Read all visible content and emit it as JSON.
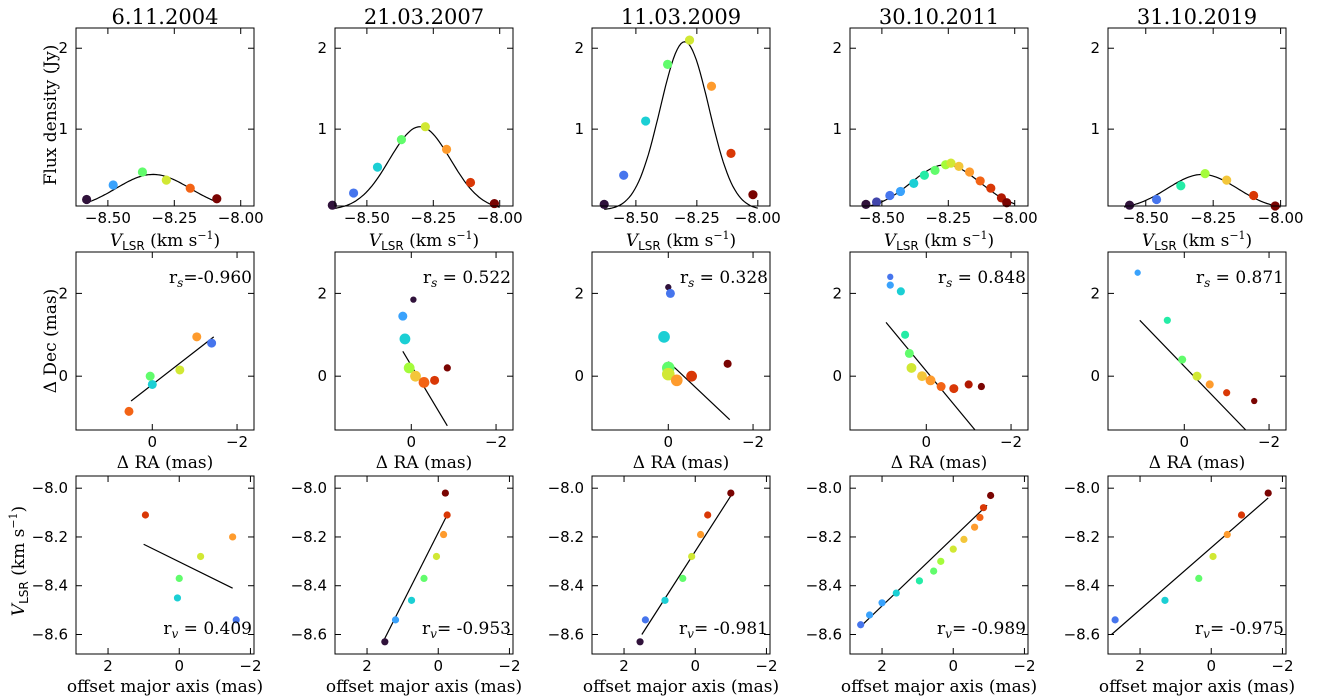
{
  "colors": {
    "colormap": [
      "#30123b",
      "#4145ab",
      "#4675ed",
      "#39a2fc",
      "#1bcfd4",
      "#24eca6",
      "#61fc6c",
      "#a4fc3b",
      "#d1e834",
      "#f3c63a",
      "#fe9b2d",
      "#f36315",
      "#d93806",
      "#b11901",
      "#7a0402"
    ],
    "fit_line": "#000000"
  },
  "labels": {
    "spectrum_ylabel": "Flux density (Jy)",
    "spectrum_xlabel_main": "V",
    "spectrum_xlabel_sub": "LSR",
    "spectrum_xlabel_unit": " (km s",
    "spectrum_xlabel_unit_exp": "−1",
    "spectrum_xlabel_close": ")",
    "map_ylabel": "Δ Dec (mas)",
    "map_xlabel": "Δ RA (mas)",
    "vel_ylabel_main": "V",
    "vel_ylabel_sub": "LSR",
    "vel_ylabel_unit": " (km s",
    "vel_ylabel_unit_exp": "−1",
    "vel_ylabel_close": ")",
    "vel_xlabel": "offset major axis (mas)",
    "rs_prefix": "r",
    "rs_sub": "s",
    "rv_prefix": "r",
    "rv_sub": "v"
  },
  "chart_data": [
    {
      "type": "line",
      "title": "6.11.2004",
      "panel": "spectrum",
      "xlim": [
        -8.62,
        -7.95
      ],
      "ylim": [
        0.05,
        2.25
      ],
      "xticks": [
        "−8.50",
        "−8.25",
        "−8.00"
      ],
      "xtick_values": [
        -8.5,
        -8.25,
        -8.0
      ],
      "yticks": [
        "1",
        "2"
      ],
      "ytick_values": [
        1,
        2
      ],
      "points": [
        {
          "x": -8.58,
          "y": 0.13
        },
        {
          "x": -8.48,
          "y": 0.31
        },
        {
          "x": -8.37,
          "y": 0.47
        },
        {
          "x": -8.28,
          "y": 0.37
        },
        {
          "x": -8.19,
          "y": 0.27
        },
        {
          "x": -8.09,
          "y": 0.14
        }
      ],
      "fit": {
        "amplitude": 0.44,
        "center": -8.33,
        "sigma": 0.14,
        "from": -8.58,
        "to": -8.09
      }
    },
    {
      "type": "line",
      "title": "21.03.2007",
      "panel": "spectrum",
      "xlim": [
        -8.62,
        -7.95
      ],
      "ylim": [
        0.05,
        2.25
      ],
      "xticks": [
        "−8.50",
        "−8.25",
        "−8.00"
      ],
      "xtick_values": [
        -8.5,
        -8.25,
        -8.0
      ],
      "yticks": [
        "1",
        "2"
      ],
      "ytick_values": [
        1,
        2
      ],
      "points": [
        {
          "x": -8.63,
          "y": 0.06
        },
        {
          "x": -8.55,
          "y": 0.21
        },
        {
          "x": -8.46,
          "y": 0.53
        },
        {
          "x": -8.37,
          "y": 0.87
        },
        {
          "x": -8.28,
          "y": 1.03
        },
        {
          "x": -8.2,
          "y": 0.75
        },
        {
          "x": -8.11,
          "y": 0.34
        },
        {
          "x": -8.02,
          "y": 0.08
        }
      ],
      "fit": {
        "amplitude": 1.03,
        "center": -8.3,
        "sigma": 0.115,
        "from": -8.63,
        "to": -8.0
      }
    },
    {
      "type": "line",
      "title": "11.03.2009",
      "panel": "spectrum",
      "xlim": [
        -8.68,
        -7.95
      ],
      "ylim": [
        0.05,
        2.25
      ],
      "xticks": [
        "−8.50",
        "−8.25",
        "−8.00"
      ],
      "xtick_values": [
        -8.5,
        -8.25,
        -8.0
      ],
      "yticks": [
        "1",
        "2"
      ],
      "ytick_values": [
        1,
        2
      ],
      "points": [
        {
          "x": -8.63,
          "y": 0.07
        },
        {
          "x": -8.55,
          "y": 0.43
        },
        {
          "x": -8.46,
          "y": 1.1
        },
        {
          "x": -8.37,
          "y": 1.8
        },
        {
          "x": -8.28,
          "y": 2.1
        },
        {
          "x": -8.19,
          "y": 1.53
        },
        {
          "x": -8.11,
          "y": 0.7
        },
        {
          "x": -8.02,
          "y": 0.19
        }
      ],
      "fit": {
        "amplitude": 2.08,
        "center": -8.3,
        "sigma": 0.1,
        "from": -8.63,
        "to": -8.0
      }
    },
    {
      "type": "line",
      "title": "30.10.2011",
      "panel": "spectrum",
      "xlim": [
        -8.62,
        -7.95
      ],
      "ylim": [
        0.05,
        2.25
      ],
      "xticks": [
        "−8.50",
        "−8.25",
        "−8.00"
      ],
      "xtick_values": [
        -8.5,
        -8.25,
        -8.0
      ],
      "yticks": [
        "1",
        "2"
      ],
      "ytick_values": [
        1,
        2
      ],
      "points": [
        {
          "x": -8.56,
          "y": 0.07
        },
        {
          "x": -8.52,
          "y": 0.1
        },
        {
          "x": -8.47,
          "y": 0.18
        },
        {
          "x": -8.43,
          "y": 0.23
        },
        {
          "x": -8.38,
          "y": 0.33
        },
        {
          "x": -8.34,
          "y": 0.43
        },
        {
          "x": -8.3,
          "y": 0.49
        },
        {
          "x": -8.26,
          "y": 0.56
        },
        {
          "x": -8.24,
          "y": 0.58
        },
        {
          "x": -8.21,
          "y": 0.54
        },
        {
          "x": -8.17,
          "y": 0.47
        },
        {
          "x": -8.13,
          "y": 0.36
        },
        {
          "x": -8.09,
          "y": 0.27
        },
        {
          "x": -8.05,
          "y": 0.15
        },
        {
          "x": -8.03,
          "y": 0.09
        }
      ],
      "fit": {
        "amplitude": 0.56,
        "center": -8.26,
        "sigma": 0.13,
        "from": -8.56,
        "to": -8.0
      }
    },
    {
      "type": "line",
      "title": "31.10.2019",
      "panel": "spectrum",
      "xlim": [
        -8.64,
        -7.98
      ],
      "ylim": [
        0.05,
        2.25
      ],
      "xticks": [
        "−8.50",
        "−8.25",
        "−8.00"
      ],
      "xtick_values": [
        -8.5,
        -8.25,
        -8.0
      ],
      "yticks": [
        "1",
        "2"
      ],
      "ytick_values": [
        1,
        2
      ],
      "points": [
        {
          "x": -8.56,
          "y": 0.06
        },
        {
          "x": -8.46,
          "y": 0.13
        },
        {
          "x": -8.37,
          "y": 0.3
        },
        {
          "x": -8.28,
          "y": 0.45
        },
        {
          "x": -8.2,
          "y": 0.37
        },
        {
          "x": -8.1,
          "y": 0.18
        },
        {
          "x": -8.02,
          "y": 0.05
        }
      ],
      "fit": {
        "amplitude": 0.44,
        "center": -8.29,
        "sigma": 0.13,
        "from": -8.58,
        "to": -8.0
      }
    },
    {
      "type": "scatter",
      "panel": "map",
      "xlim": [
        1.8,
        -2.4
      ],
      "ylim": [
        -1.3,
        3.0
      ],
      "xticks": [
        "0",
        "−2"
      ],
      "xtick_values": [
        0,
        -2
      ],
      "yticks": [
        "0",
        "2"
      ],
      "ytick_values": [
        0,
        2
      ],
      "r_value": "=-0.960",
      "points": [
        {
          "x": 0.55,
          "y": -0.85,
          "s": 1
        },
        {
          "x": 0.0,
          "y": -0.2,
          "s": 1
        },
        {
          "x": 0.05,
          "y": 0.0,
          "s": 1
        },
        {
          "x": -0.65,
          "y": 0.15,
          "s": 1
        },
        {
          "x": -1.05,
          "y": 0.95,
          "s": 1
        },
        {
          "x": -1.4,
          "y": 0.8,
          "s": 1
        }
      ],
      "point_colors": [
        11,
        4,
        6,
        8,
        10,
        2
      ],
      "fit": {
        "x1": 0.5,
        "y1": -0.6,
        "x2": -1.45,
        "y2": 0.95
      }
    },
    {
      "type": "scatter",
      "panel": "map",
      "xlim": [
        1.8,
        -2.4
      ],
      "ylim": [
        -1.3,
        3.0
      ],
      "xticks": [
        "0",
        "−2"
      ],
      "xtick_values": [
        0,
        -2
      ],
      "yticks": [
        "0",
        "2"
      ],
      "ytick_values": [
        0,
        2
      ],
      "r_value": " = 0.522",
      "points": [
        {
          "x": -0.05,
          "y": 1.85,
          "s": 0.7
        },
        {
          "x": 0.2,
          "y": 1.45,
          "s": 1
        },
        {
          "x": 0.15,
          "y": 0.9,
          "s": 1.2
        },
        {
          "x": 0.05,
          "y": 0.2,
          "s": 1.2
        },
        {
          "x": -0.1,
          "y": 0.0,
          "s": 1.2
        },
        {
          "x": -0.3,
          "y": -0.15,
          "s": 1.2
        },
        {
          "x": -0.55,
          "y": -0.1,
          "s": 1
        },
        {
          "x": -0.85,
          "y": 0.2,
          "s": 0.8
        }
      ],
      "point_colors": [
        0,
        3,
        4,
        7,
        9,
        11,
        12,
        14
      ],
      "fit": {
        "x1": 0.2,
        "y1": 0.6,
        "x2": -0.85,
        "y2": -1.2
      }
    },
    {
      "type": "scatter",
      "panel": "map",
      "xlim": [
        1.8,
        -2.4
      ],
      "ylim": [
        -1.3,
        3.0
      ],
      "xticks": [
        "0",
        "−2"
      ],
      "xtick_values": [
        0,
        -2
      ],
      "yticks": [
        "0",
        "2"
      ],
      "ytick_values": [
        0,
        2
      ],
      "r_value": " = 0.328",
      "points": [
        {
          "x": 0.0,
          "y": 2.15,
          "s": 0.7
        },
        {
          "x": -0.05,
          "y": 2.0,
          "s": 1
        },
        {
          "x": 0.1,
          "y": 0.95,
          "s": 1.3
        },
        {
          "x": 0.0,
          "y": 0.2,
          "s": 1.4
        },
        {
          "x": 0.0,
          "y": 0.05,
          "s": 1.4
        },
        {
          "x": -0.2,
          "y": -0.1,
          "s": 1.3
        },
        {
          "x": -0.55,
          "y": 0.0,
          "s": 1.2
        },
        {
          "x": -1.4,
          "y": 0.3,
          "s": 0.9
        }
      ],
      "point_colors": [
        0,
        2,
        4,
        6,
        8,
        10,
        12,
        14
      ],
      "fit": {
        "x1": 0.0,
        "y1": 0.35,
        "x2": -1.45,
        "y2": -1.05
      }
    },
    {
      "type": "scatter",
      "panel": "map",
      "xlim": [
        1.8,
        -2.4
      ],
      "ylim": [
        -1.3,
        3.0
      ],
      "xticks": [
        "0",
        "−2"
      ],
      "xtick_values": [
        0,
        -2
      ],
      "yticks": [
        "0",
        "2"
      ],
      "ytick_values": [
        0,
        2
      ],
      "r_value": " = 0.848",
      "points": [
        {
          "x": 0.85,
          "y": 2.4,
          "s": 0.7
        },
        {
          "x": 0.85,
          "y": 2.2,
          "s": 0.8
        },
        {
          "x": 0.6,
          "y": 2.05,
          "s": 0.9
        },
        {
          "x": 0.5,
          "y": 1.0,
          "s": 0.9
        },
        {
          "x": 0.4,
          "y": 0.55,
          "s": 1
        },
        {
          "x": 0.35,
          "y": 0.2,
          "s": 1.1
        },
        {
          "x": 0.1,
          "y": 0.0,
          "s": 1.1
        },
        {
          "x": -0.1,
          "y": -0.1,
          "s": 1.1
        },
        {
          "x": -0.35,
          "y": -0.25,
          "s": 1
        },
        {
          "x": -0.65,
          "y": -0.3,
          "s": 1
        },
        {
          "x": -1.0,
          "y": -0.2,
          "s": 0.9
        },
        {
          "x": -1.3,
          "y": -0.25,
          "s": 0.8
        }
      ],
      "point_colors": [
        2,
        3,
        4,
        5,
        6,
        8,
        9,
        10,
        11,
        12,
        13,
        14
      ],
      "fit": {
        "x1": 0.95,
        "y1": 1.3,
        "x2": -1.15,
        "y2": -1.3
      }
    },
    {
      "type": "scatter",
      "panel": "map",
      "xlim": [
        1.8,
        -2.4
      ],
      "ylim": [
        -1.3,
        3.0
      ],
      "xticks": [
        "0",
        "−2"
      ],
      "xtick_values": [
        0,
        -2
      ],
      "yticks": [
        "0",
        "2"
      ],
      "ytick_values": [
        0,
        2
      ],
      "r_value": " = 0.871",
      "points": [
        {
          "x": 1.1,
          "y": 2.5,
          "s": 0.7
        },
        {
          "x": 0.4,
          "y": 1.35,
          "s": 0.8
        },
        {
          "x": 0.05,
          "y": 0.4,
          "s": 0.9
        },
        {
          "x": -0.3,
          "y": 0.0,
          "s": 1
        },
        {
          "x": -0.6,
          "y": -0.2,
          "s": 0.9
        },
        {
          "x": -1.0,
          "y": -0.4,
          "s": 0.8
        },
        {
          "x": -1.65,
          "y": -0.6,
          "s": 0.7
        }
      ],
      "point_colors": [
        3,
        5,
        6,
        8,
        10,
        12,
        14
      ],
      "fit": {
        "x1": 1.05,
        "y1": 1.35,
        "x2": -1.45,
        "y2": -1.3
      }
    },
    {
      "type": "scatter",
      "panel": "velocity",
      "xlim": [
        2.9,
        -2.1
      ],
      "ylim": [
        -8.68,
        -7.95
      ],
      "xticks": [
        "2",
        "0",
        "−2"
      ],
      "xtick_values": [
        2,
        0,
        -2
      ],
      "yticks": [
        "−8.0",
        "−8.2",
        "−8.4",
        "−8.6"
      ],
      "ytick_values": [
        -8.0,
        -8.2,
        -8.4,
        -8.6
      ],
      "r_value": " = 0.409",
      "points": [
        {
          "x": -1.6,
          "y": -8.54
        },
        {
          "x": 0.05,
          "y": -8.45
        },
        {
          "x": -0.0,
          "y": -8.37
        },
        {
          "x": -0.6,
          "y": -8.28
        },
        {
          "x": -1.5,
          "y": -8.2
        },
        {
          "x": 0.95,
          "y": -8.11
        }
      ],
      "point_colors": [
        2,
        4,
        6,
        8,
        10,
        12
      ],
      "fit": {
        "x1": 1.0,
        "y1": -8.23,
        "x2": -1.5,
        "y2": -8.41
      }
    },
    {
      "type": "scatter",
      "panel": "velocity",
      "xlim": [
        2.9,
        -2.1
      ],
      "ylim": [
        -8.68,
        -7.95
      ],
      "xticks": [
        "2",
        "0",
        "−2"
      ],
      "xtick_values": [
        2,
        0,
        -2
      ],
      "yticks": [
        "−8.0",
        "−8.2",
        "−8.4",
        "−8.6"
      ],
      "ytick_values": [
        -8.0,
        -8.2,
        -8.4,
        -8.6
      ],
      "r_value": "= -0.953",
      "points": [
        {
          "x": 1.5,
          "y": -8.63
        },
        {
          "x": 1.2,
          "y": -8.54
        },
        {
          "x": 0.75,
          "y": -8.46
        },
        {
          "x": 0.4,
          "y": -8.37
        },
        {
          "x": 0.05,
          "y": -8.28
        },
        {
          "x": -0.15,
          "y": -8.19
        },
        {
          "x": -0.25,
          "y": -8.11
        },
        {
          "x": -0.2,
          "y": -8.02
        }
      ],
      "point_colors": [
        0,
        3,
        4,
        6,
        8,
        10,
        12,
        14
      ],
      "fit": {
        "x1": 1.55,
        "y1": -8.63,
        "x2": -0.25,
        "y2": -8.11
      }
    },
    {
      "type": "scatter",
      "panel": "velocity",
      "xlim": [
        2.9,
        -2.1
      ],
      "ylim": [
        -8.68,
        -7.95
      ],
      "xticks": [
        "2",
        "0",
        "−2"
      ],
      "xtick_values": [
        2,
        0,
        -2
      ],
      "yticks": [
        "−8.0",
        "−8.2",
        "−8.4",
        "−8.6"
      ],
      "ytick_values": [
        -8.0,
        -8.2,
        -8.4,
        -8.6
      ],
      "r_value": "= -0.981",
      "points": [
        {
          "x": 1.55,
          "y": -8.63
        },
        {
          "x": 1.4,
          "y": -8.54
        },
        {
          "x": 0.85,
          "y": -8.46
        },
        {
          "x": 0.35,
          "y": -8.37
        },
        {
          "x": 0.1,
          "y": -8.28
        },
        {
          "x": -0.15,
          "y": -8.19
        },
        {
          "x": -0.35,
          "y": -8.11
        },
        {
          "x": -1.0,
          "y": -8.02
        }
      ],
      "point_colors": [
        0,
        2,
        4,
        6,
        8,
        10,
        12,
        14
      ],
      "fit": {
        "x1": 1.5,
        "y1": -8.6,
        "x2": -1.05,
        "y2": -8.02
      }
    },
    {
      "type": "scatter",
      "panel": "velocity",
      "xlim": [
        2.9,
        -2.1
      ],
      "ylim": [
        -8.68,
        -7.95
      ],
      "xticks": [
        "2",
        "0",
        "−2"
      ],
      "xtick_values": [
        2,
        0,
        -2
      ],
      "yticks": [
        "−8.0",
        "−8.2",
        "−8.4",
        "−8.6"
      ],
      "ytick_values": [
        -8.0,
        -8.2,
        -8.4,
        -8.6
      ],
      "r_value": "= -0.989",
      "points": [
        {
          "x": 2.6,
          "y": -8.56
        },
        {
          "x": 2.35,
          "y": -8.52
        },
        {
          "x": 2.0,
          "y": -8.47
        },
        {
          "x": 1.6,
          "y": -8.43
        },
        {
          "x": 0.95,
          "y": -8.38
        },
        {
          "x": 0.55,
          "y": -8.34
        },
        {
          "x": 0.35,
          "y": -8.3
        },
        {
          "x": 0.0,
          "y": -8.25
        },
        {
          "x": -0.3,
          "y": -8.21
        },
        {
          "x": -0.6,
          "y": -8.16
        },
        {
          "x": -0.75,
          "y": -8.12
        },
        {
          "x": -0.85,
          "y": -8.08
        },
        {
          "x": -1.05,
          "y": -8.03
        }
      ],
      "point_colors": [
        2,
        3,
        3,
        4,
        5,
        6,
        7,
        8,
        9,
        10,
        11,
        12,
        14
      ],
      "fit": {
        "x1": 2.55,
        "y1": -8.56,
        "x2": -0.95,
        "y2": -8.07
      }
    },
    {
      "type": "scatter",
      "panel": "velocity",
      "xlim": [
        2.9,
        -2.1
      ],
      "ylim": [
        -8.68,
        -7.95
      ],
      "xticks": [
        "2",
        "0",
        "−2"
      ],
      "xtick_values": [
        2,
        0,
        -2
      ],
      "yticks": [
        "−8.0",
        "−8.2",
        "−8.4",
        "−8.6"
      ],
      "ytick_values": [
        -8.0,
        -8.2,
        -8.4,
        -8.6
      ],
      "r_value": "= -0.975",
      "points": [
        {
          "x": 2.7,
          "y": -8.54
        },
        {
          "x": 1.3,
          "y": -8.46
        },
        {
          "x": 0.35,
          "y": -8.37
        },
        {
          "x": -0.05,
          "y": -8.28
        },
        {
          "x": -0.45,
          "y": -8.19
        },
        {
          "x": -0.85,
          "y": -8.11
        },
        {
          "x": -1.6,
          "y": -8.02
        }
      ],
      "point_colors": [
        2,
        4,
        6,
        8,
        10,
        12,
        14
      ],
      "fit": {
        "x1": 2.8,
        "y1": -8.6,
        "x2": -1.6,
        "y2": -8.04
      }
    }
  ]
}
